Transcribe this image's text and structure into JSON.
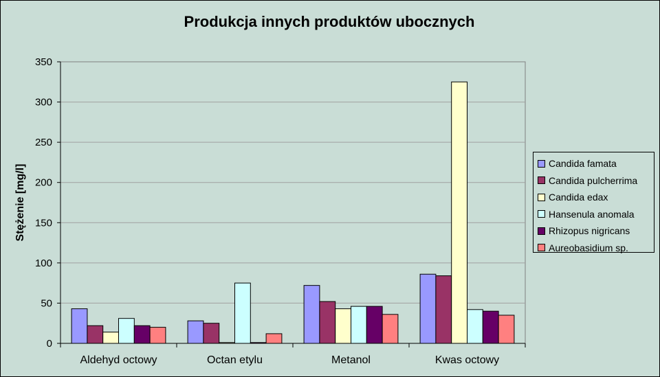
{
  "chart_data": {
    "type": "bar",
    "title": "Produkcja innych produktów ubocznych",
    "xlabel": "",
    "ylabel": "Stężenie [mg/l]",
    "ylim": [
      0,
      350
    ],
    "yticks": [
      0,
      50,
      100,
      150,
      200,
      250,
      300,
      350
    ],
    "grid": true,
    "legend_position": "right",
    "categories": [
      "Aldehyd octowy",
      "Octan etylu",
      "Metanol",
      "Kwas octowy"
    ],
    "series": [
      {
        "name": "Candida famata",
        "color": "#9999ff",
        "values": [
          43,
          28,
          72,
          86
        ]
      },
      {
        "name": "Candida pulcherrima",
        "color": "#993366",
        "values": [
          22,
          25,
          52,
          84
        ]
      },
      {
        "name": "Candida edax",
        "color": "#ffffcc",
        "values": [
          14,
          1,
          43,
          325
        ]
      },
      {
        "name": "Hansenula anomala",
        "color": "#ccffff",
        "values": [
          31,
          75,
          46,
          42
        ]
      },
      {
        "name": "Rhizopus nigricans",
        "color": "#660066",
        "values": [
          22,
          1,
          46,
          40
        ]
      },
      {
        "name": "Aureobasidium sp.",
        "color": "#ff8080",
        "values": [
          20,
          12,
          36,
          35
        ]
      }
    ]
  }
}
